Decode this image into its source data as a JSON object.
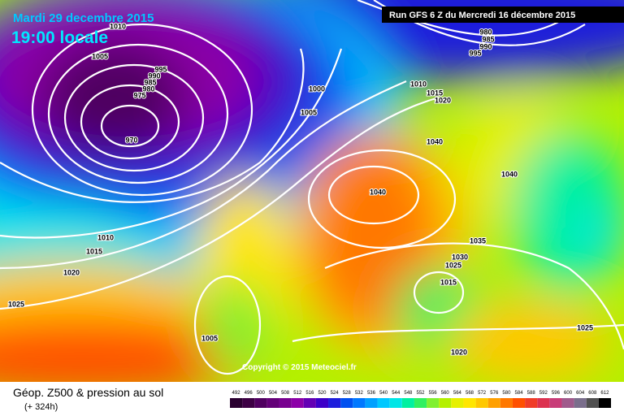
{
  "header": {
    "date": "Mardi 29 decembre 2015",
    "time": "19:00 locale",
    "run": "Run GFS 6 Z du Mercredi 16 décembre 2015"
  },
  "isobar_labels": [
    "1010",
    "1005",
    "995",
    "990",
    "985",
    "980",
    "975",
    "970",
    "1000",
    "1005",
    "1010",
    "1015",
    "1020",
    "1025",
    "1005",
    "980",
    "985",
    "990",
    "995",
    "1010",
    "1015",
    "1020",
    "1040",
    "1040",
    "1040",
    "1035",
    "1030",
    "1025",
    "1015",
    "1025",
    "1020"
  ],
  "copyright": "Copyright © 2015 Meteociel.fr",
  "footer": {
    "title": "Géop. Z500 & pression au sol",
    "lead": "(+ 324h)"
  },
  "scale": {
    "values": [
      492,
      496,
      500,
      504,
      508,
      512,
      516,
      520,
      524,
      528,
      532,
      536,
      540,
      544,
      548,
      552,
      556,
      560,
      564,
      568,
      572,
      576,
      580,
      584,
      588,
      592,
      596,
      600,
      604,
      608,
      612
    ],
    "colors": [
      "#2a0030",
      "#3d0044",
      "#500060",
      "#640078",
      "#780090",
      "#8c00a8",
      "#6400b4",
      "#3c00c8",
      "#1e1edc",
      "#0050f0",
      "#0078ff",
      "#00a0ff",
      "#00c8ff",
      "#00e6e6",
      "#00f0a0",
      "#30f060",
      "#80f030",
      "#b4f000",
      "#e6f000",
      "#ffe600",
      "#ffc800",
      "#ffa000",
      "#ff7800",
      "#ff5000",
      "#f03c28",
      "#dc3250",
      "#c83c78",
      "#a05a8c",
      "#7a6e8c",
      "#505050",
      "#000000"
    ]
  }
}
